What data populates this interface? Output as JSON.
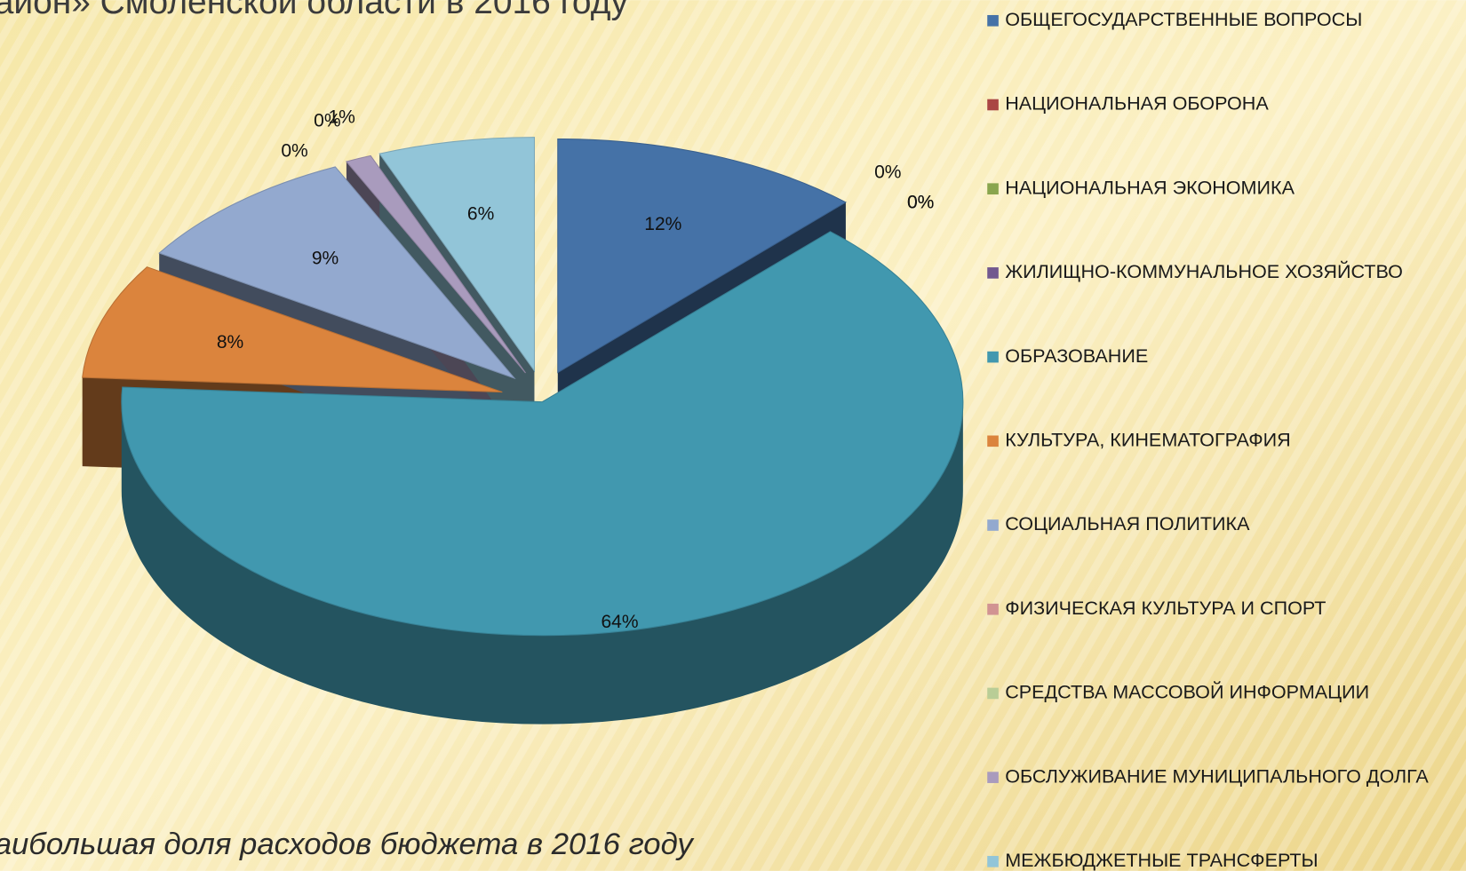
{
  "chart_data": {
    "type": "pie3d",
    "title": "айон» Смоленской области в 2016 году",
    "caption": "аибольшая доля расходов бюджета в 2016 году",
    "categories": [
      "ОБЩЕГОСУДАРСТВЕННЫЕ ВОПРОСЫ",
      "НАЦИОНАЛЬНАЯ ОБОРОНА",
      "НАЦИОНАЛЬНАЯ ЭКОНОМИКА",
      "ЖИЛИЩНО-КОММУНАЛЬНОЕ ХОЗЯЙСТВО",
      "ОБРАЗОВАНИЕ",
      "КУЛЬТУРА, КИНЕМАТОГРАФИЯ",
      "СОЦИАЛЬНАЯ ПОЛИТИКА",
      "ФИЗИЧЕСКАЯ КУЛЬТУРА И СПОРТ",
      "СРЕДСТВА МАССОВОЙ ИНФОРМАЦИИ",
      "ОБСЛУЖИВАНИЕ МУНИЦИПАЛЬНОГО ДОЛГА",
      "МЕЖБЮДЖЕТНЫЕ ТРАНСФЕРТЫ"
    ],
    "values": [
      12,
      0,
      0,
      0,
      64,
      8,
      9,
      0,
      0,
      1,
      6
    ],
    "value_labels": [
      "12%",
      "0%",
      "0%",
      "0%",
      "64%",
      "8%",
      "9%",
      "0%",
      "0%",
      "1%",
      "6%"
    ],
    "colors": [
      "#4572a7",
      "#aa4643",
      "#89a54e",
      "#71588f",
      "#4198af",
      "#db843d",
      "#93a9cf",
      "#d19392",
      "#b9cd96",
      "#a99bbd",
      "#92c5d8"
    ],
    "legend": "right"
  }
}
